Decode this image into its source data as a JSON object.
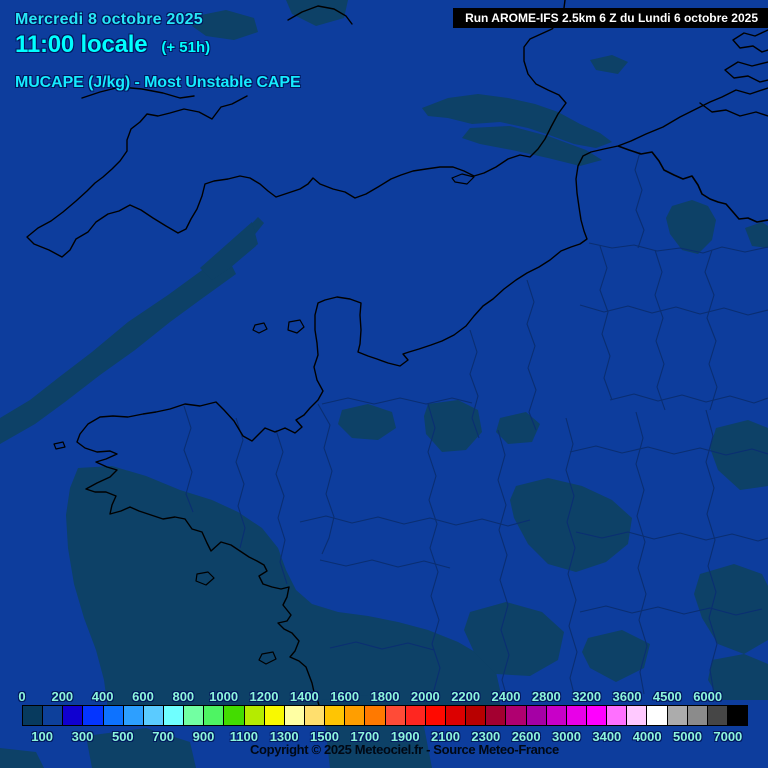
{
  "header": {
    "date": "Mercredi 8 octobre 2025",
    "time": "11:00 locale",
    "offset": "(+ 51h)",
    "variable": "MUCAPE (J/kg) - Most Unstable CAPE",
    "run_info": "Run AROME-IFS 2.5km 6 Z du Lundi 6 octobre 2025"
  },
  "colorbar": {
    "top_labels": [
      "0",
      "200",
      "400",
      "600",
      "800",
      "1000",
      "1200",
      "1400",
      "1600",
      "1800",
      "2000",
      "2200",
      "2400",
      "2800",
      "3200",
      "3600",
      "4500",
      "6000"
    ],
    "bottom_labels": [
      "100",
      "300",
      "500",
      "700",
      "900",
      "1100",
      "1300",
      "1500",
      "1700",
      "1900",
      "2100",
      "2300",
      "2600",
      "3000",
      "3400",
      "4000",
      "5000",
      "7000"
    ],
    "colors": [
      "#073a5e",
      "#0d409b",
      "#1000d0",
      "#0435ff",
      "#0d72ff",
      "#2d9fff",
      "#5bcbff",
      "#6fffff",
      "#72ffa2",
      "#4ef463",
      "#43dc00",
      "#b5eb00",
      "#f9f900",
      "#ffffa3",
      "#ffdf6e",
      "#ffc503",
      "#ff9e00",
      "#ff7900",
      "#ff4b37",
      "#ff2620",
      "#ff0900",
      "#dc0000",
      "#b80000",
      "#a30030",
      "#b00070",
      "#a500a5",
      "#c800c8",
      "#e800e8",
      "#ff00ff",
      "#ff70ff",
      "#ffc9ff",
      "#ffffff",
      "#acacac",
      "#8b8b8b",
      "#464646",
      "#000000"
    ],
    "tick_color": "#8cf5dc"
  },
  "footer": {
    "copyright": "Copyright © 2025 Meteociel.fr - Source Meteo-France"
  },
  "map": {
    "sea_land_color": "#0d3d9d",
    "low_cape_patch_color": "#0d4167",
    "coastline_color": "#000000",
    "department_border_color": "#0a2e72",
    "accent_text_color": "#00ffff"
  }
}
